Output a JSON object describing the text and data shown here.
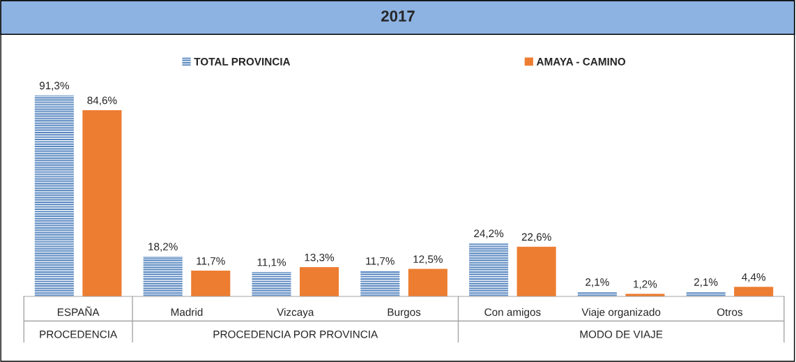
{
  "chart_data": {
    "type": "bar",
    "title": "2017",
    "categories": [
      "ESPAÑA",
      "Madrid",
      "Vizcaya",
      "Burgos",
      "Con amigos",
      "Viaje organizado",
      "Otros"
    ],
    "series": [
      {
        "name": "TOTAL PROVINCIA",
        "color": "#4f81bd",
        "values": [
          91.3,
          18.2,
          11.1,
          11.7,
          24.2,
          2.1,
          2.1
        ],
        "value_labels": [
          "91,3%",
          "18,2%",
          "11,1%",
          "11,7%",
          "24,2%",
          "2,1%",
          "2,1%"
        ]
      },
      {
        "name": "AMAYA - CAMINO",
        "color": "#ed7d31",
        "values": [
          84.6,
          11.7,
          13.3,
          12.5,
          22.6,
          1.2,
          4.4
        ],
        "value_labels": [
          "84,6%",
          "11,7%",
          "13,3%",
          "12,5%",
          "22,6%",
          "1,2%",
          "4,4%"
        ]
      }
    ],
    "annotations": [
      "PROCEDENCIA",
      "PROCEDENCIA POR PROVINCIA",
      "MODO DE VIAJE"
    ],
    "legend": "top",
    "grid": false
  }
}
